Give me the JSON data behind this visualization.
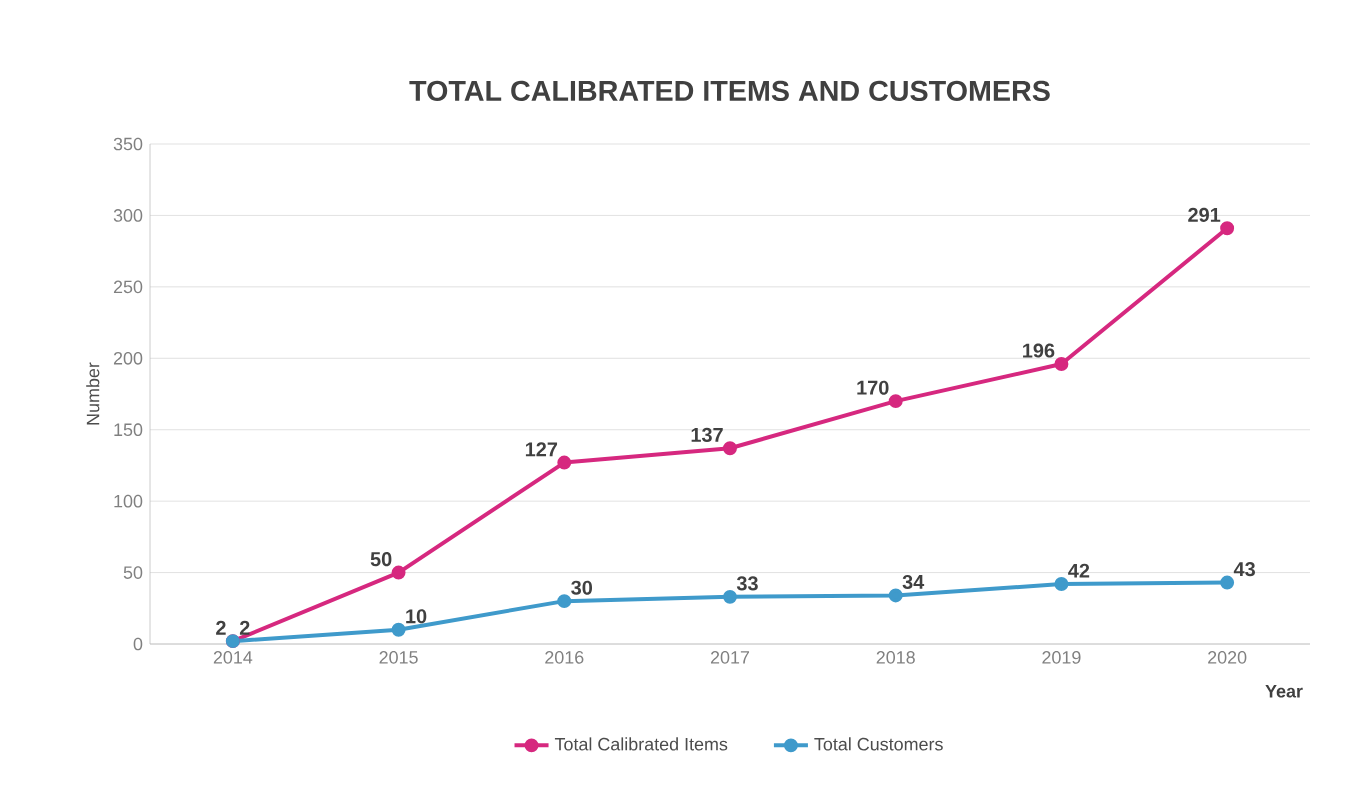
{
  "chart_data": {
    "type": "line",
    "title": "TOTAL CALIBRATED ITEMS AND CUSTOMERS",
    "xlabel": "Year",
    "ylabel": "Number",
    "categories": [
      "2014",
      "2015",
      "2016",
      "2017",
      "2018",
      "2019",
      "2020"
    ],
    "series": [
      {
        "name": "Total Calibrated Items",
        "color": "#d6287f",
        "values": [
          2,
          50,
          127,
          137,
          170,
          196,
          291
        ]
      },
      {
        "name": "Total Customers",
        "color": "#3f9acb",
        "values": [
          2,
          10,
          30,
          33,
          34,
          42,
          43
        ]
      }
    ],
    "ylim": [
      0,
      350
    ],
    "yticks": [
      0,
      50,
      100,
      150,
      200,
      250,
      300,
      350
    ],
    "grid": "y",
    "legend": "bottom",
    "marker": "circle",
    "data_labels": true
  }
}
